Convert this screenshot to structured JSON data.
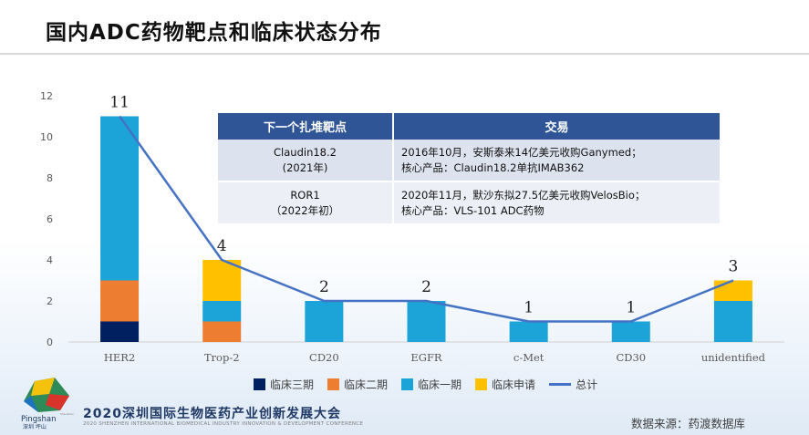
{
  "slide": {
    "title": "国内ADC药物靶点和临床状态分布",
    "data_source": "数据来源：药渡数据库"
  },
  "conference": {
    "name": "2020深圳国际生物医药产业创新发展大会",
    "name_en": "2020 SHENZHEN INTERNATIONAL BIOMEDICAL INDUSTRY INNOVATION & DEVELOPMENT CONFERENCE",
    "brand_en": "Pingshan",
    "brand_cn": "深圳 坪山",
    "brand_tiny": "Shenzhen"
  },
  "deal_table": {
    "headers": [
      "下一个扎堆靶点",
      "交易"
    ],
    "rows": [
      {
        "target": "Claudin18.2",
        "target_year": "(2021年)",
        "deal_line1": "2016年10月，安斯泰来14亿美元收购Ganymed；",
        "deal_line2": "核心产品：Claudin18.2单抗IMAB362"
      },
      {
        "target": "ROR1",
        "target_year": "（2022年初）",
        "deal_line1": "2020年11月，默沙东拟27.5亿美元收购VelosBio；",
        "deal_line2": "核心产品：VLS-101 ADC药物"
      }
    ]
  },
  "chart_data": {
    "type": "bar",
    "stacked": true,
    "categories": [
      "HER2",
      "Trop-2",
      "CD20",
      "EGFR",
      "c-Met",
      "CD30",
      "unidentified"
    ],
    "series": [
      {
        "name": "临床三期",
        "color": "#002060",
        "values": [
          1,
          0,
          0,
          0,
          0,
          0,
          0
        ]
      },
      {
        "name": "临床二期",
        "color": "#ed7d31",
        "values": [
          2,
          1,
          0,
          0,
          0,
          0,
          0
        ]
      },
      {
        "name": "临床一期",
        "color": "#1ca3d8",
        "values": [
          8,
          1,
          2,
          2,
          1,
          1,
          2
        ]
      },
      {
        "name": "临床申请",
        "color": "#ffc000",
        "values": [
          0,
          2,
          0,
          0,
          0,
          0,
          1
        ]
      }
    ],
    "line_series": {
      "name": "总计",
      "color": "#4472c4",
      "values": [
        11,
        4,
        2,
        2,
        1,
        1,
        3
      ]
    },
    "data_labels": [
      "11",
      "4",
      "2",
      "2",
      "1",
      "1",
      "3"
    ],
    "y_ticks": [
      "0",
      "2",
      "4",
      "6",
      "8",
      "10",
      "12"
    ],
    "ylim": [
      0,
      12
    ],
    "title": "",
    "xlabel": "",
    "ylabel": "",
    "legend_position": "bottom",
    "grid": false
  }
}
